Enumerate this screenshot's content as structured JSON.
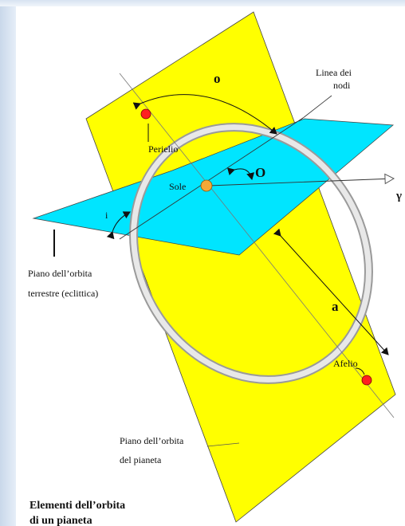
{
  "labels": {
    "omega_small": "o",
    "omega_big": "O",
    "inclination": "i",
    "semi_major_axis": "a",
    "gamma": "γ",
    "line_of_nodes_1": "Linea dei",
    "line_of_nodes_2": "nodi",
    "perihelion": "Perielio",
    "sun": "Sole",
    "aphelion": "Afelio",
    "ecliptic_1": "Piano dell’orbita",
    "ecliptic_2": "terrestre (eclittica)",
    "planet_plane_1": "Piano dell’orbita",
    "planet_plane_2": "del pianeta"
  },
  "caption": {
    "line1": "Elementi dell’orbita",
    "line2": "di un pianeta"
  },
  "colors": {
    "orbital_plane": "#ffff00",
    "ecliptic_plane": "#00ffff",
    "orbit": "#d2d2d2",
    "planet": "#ff2020",
    "sun": "#f4a836"
  }
}
